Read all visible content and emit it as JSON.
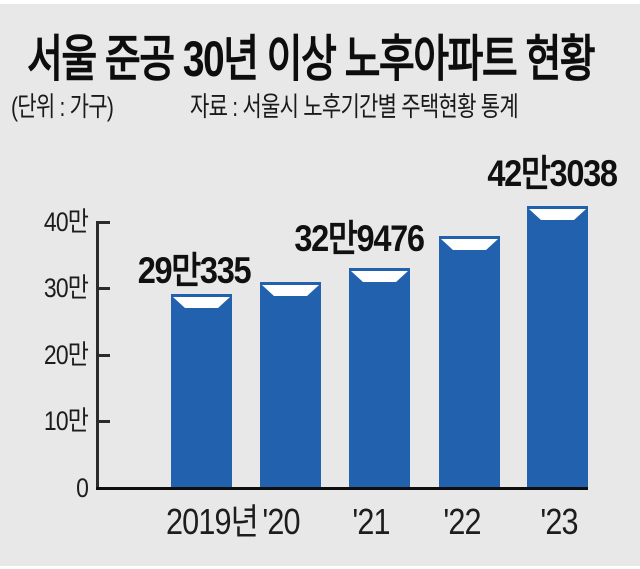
{
  "header": {
    "title": "서울 준공 30년 이상 노후아파트 현황",
    "unit": "(단위 : 가구)",
    "source": "자료 : 서울시 노후기간별 주택현황 통계"
  },
  "chart_data": {
    "type": "bar",
    "title": "서울 준공 30년 이상 노후아파트 현황",
    "unit_note": "(단위 : 가구)",
    "source_note": "자료 : 서울시 노후기간별 주택현황 통계",
    "categories": [
      "2019년",
      "'20",
      "'21",
      "'22",
      "'23"
    ],
    "values": [
      290335,
      308000,
      329476,
      377000,
      423038
    ],
    "value_labels": [
      "29만335",
      "",
      "32만9476",
      "",
      "42만3038"
    ],
    "y_ticks": [
      "0",
      "10만",
      "20만",
      "30만",
      "40만"
    ],
    "y_tick_values": [
      0,
      100000,
      200000,
      300000,
      400000
    ],
    "ylim": [
      0,
      430000
    ],
    "grid": false,
    "legend": false,
    "colors": {
      "bar": "#2161ae",
      "bar_notch": "#ffffff",
      "axis": "#2b2b2b",
      "baseline": "#0e0e0e",
      "panel_background": "#e8e8e8",
      "text": "#101010"
    }
  }
}
